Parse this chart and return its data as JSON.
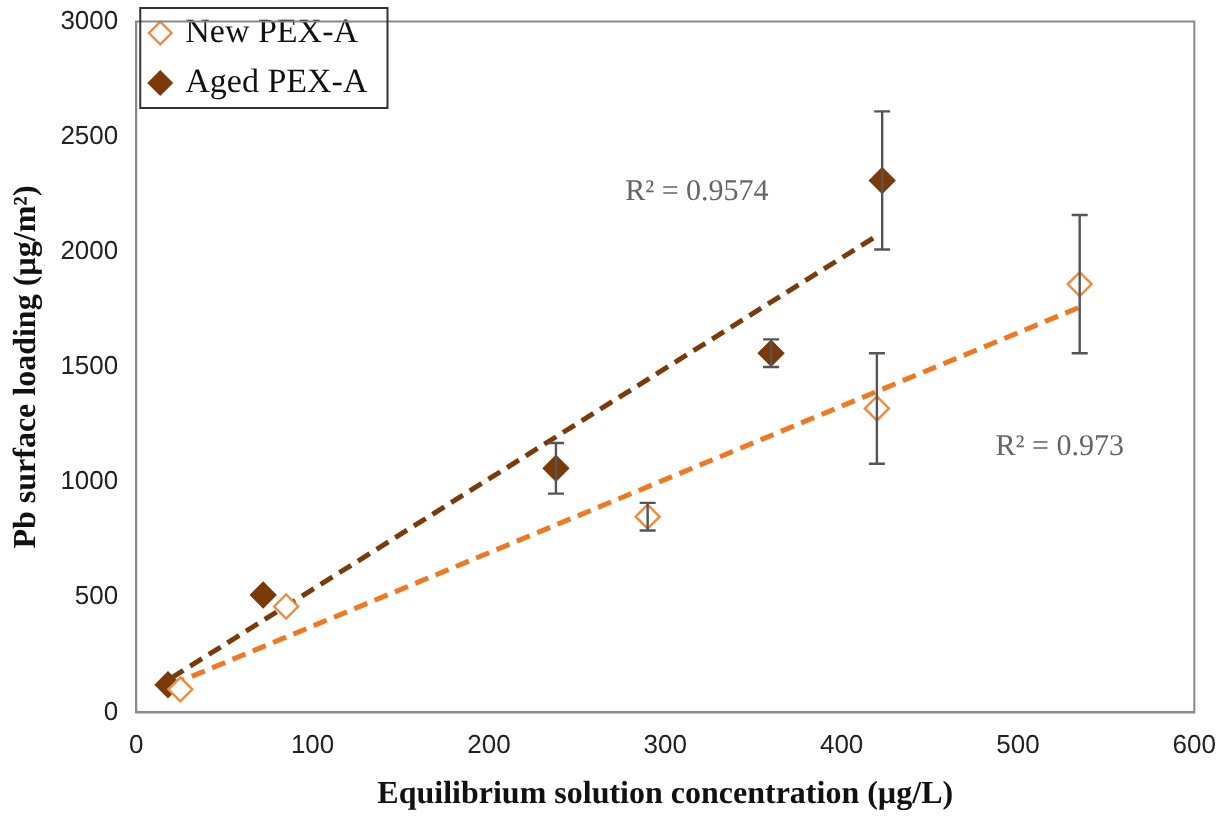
{
  "chart_data": {
    "type": "scatter",
    "xlabel": "Equilibrium solution concentration (µg/L)",
    "ylabel": "Pb surface loading (µg/m²)",
    "xlim": [
      0,
      600
    ],
    "xticks": [
      0,
      100,
      200,
      300,
      400,
      500,
      600
    ],
    "ylim": [
      0,
      3000
    ],
    "yticks": [
      0,
      500,
      1000,
      1500,
      2000,
      2500,
      3000
    ],
    "grid": false,
    "legend": "top left",
    "marker": "diamond",
    "series": [
      {
        "name": "New PEX-A",
        "color": "#f08a40",
        "x": [
          25,
          85,
          290,
          420,
          535
        ],
        "values": [
          100,
          460,
          850,
          1320,
          1860
        ],
        "errors": [
          null,
          null,
          60,
          240,
          300
        ]
      },
      {
        "name": "Aged PEX-A",
        "color": "#7b3a0a",
        "x": [
          18,
          72,
          238,
          360,
          423
        ],
        "values": [
          120,
          510,
          1060,
          1560,
          2310
        ],
        "errors": [
          null,
          null,
          110,
          60,
          300
        ]
      },
      {
        "type": "line",
        "color": "#7b3a0a",
        "line_style": "dashed",
        "marker": "none",
        "x": [
          20,
          420
        ],
        "values": [
          150,
          2070
        ]
      },
      {
        "type": "line",
        "color": "#f07820",
        "line_style": "dashed",
        "marker": "none",
        "x": [
          20,
          535
        ],
        "values": [
          120,
          1760
        ]
      }
    ],
    "annotations": [
      "R² = 0.9574",
      "R² = 0.973"
    ]
  }
}
